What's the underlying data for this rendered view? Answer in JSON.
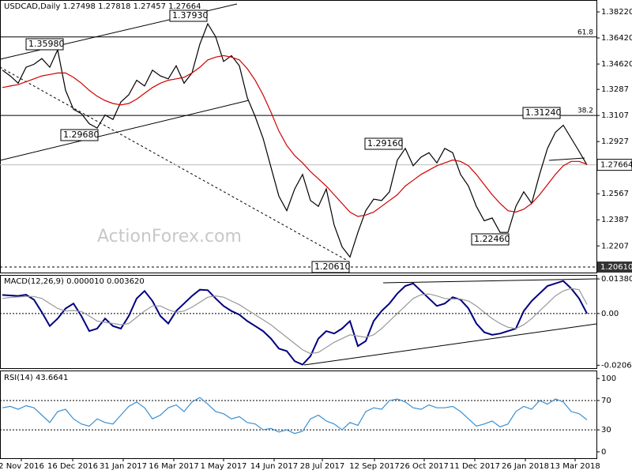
{
  "watermark": "ActionForex.com",
  "chart_data": [
    {
      "type": "line",
      "title": "USDCAD,Daily 1.27498 1.27818 1.27457 1.27664",
      "xlim": [
        -0.3,
        75.2
      ],
      "ylim": [
        1.2023,
        1.3904
      ],
      "grid": false,
      "yticks": [
        {
          "value": 1.3822,
          "label": "1.38220"
        },
        {
          "value": 1.3642,
          "label": "1.36420"
        },
        {
          "value": 1.3462,
          "label": "1.34620"
        },
        1.3287,
        1.3107,
        1.2927,
        1.2567,
        1.2387,
        1.2207
      ],
      "series": [
        {
          "color": "#000000",
          "values": [
            1.342,
            1.338,
            1.333,
            1.344,
            1.346,
            1.35,
            1.344,
            1.356,
            1.328,
            1.315,
            1.312,
            1.305,
            1.302,
            1.311,
            1.308,
            1.32,
            1.325,
            1.335,
            1.331,
            1.342,
            1.338,
            1.336,
            1.345,
            1.333,
            1.34,
            1.36,
            1.374,
            1.365,
            1.348,
            1.352,
            1.345,
            1.323,
            1.31,
            1.295,
            1.275,
            1.255,
            1.245,
            1.26,
            1.27,
            1.252,
            1.248,
            1.26,
            1.235,
            1.22,
            1.213,
            1.23,
            1.245,
            1.253,
            1.252,
            1.258,
            1.28,
            1.288,
            1.276,
            1.282,
            1.285,
            1.278,
            1.288,
            1.285,
            1.27,
            1.262,
            1.248,
            1.238,
            1.24,
            1.23,
            1.23,
            1.248,
            1.258,
            1.25,
            1.27,
            1.288,
            1.299,
            1.304,
            1.295,
            1.286,
            1.27664
          ]
        },
        {
          "color": "#d00000",
          "values": [
            1.33,
            1.331,
            1.332,
            1.334,
            1.336,
            1.338,
            1.339,
            1.34,
            1.34,
            1.337,
            1.333,
            1.328,
            1.324,
            1.321,
            1.319,
            1.318,
            1.319,
            1.322,
            1.326,
            1.33,
            1.333,
            1.335,
            1.336,
            1.337,
            1.34,
            1.344,
            1.349,
            1.351,
            1.352,
            1.351,
            1.349,
            1.343,
            1.335,
            1.325,
            1.313,
            1.3,
            1.29,
            1.283,
            1.278,
            1.272,
            1.267,
            1.262,
            1.256,
            1.25,
            1.244,
            1.241,
            1.242,
            1.244,
            1.248,
            1.252,
            1.256,
            1.262,
            1.266,
            1.27,
            1.273,
            1.276,
            1.278,
            1.28,
            1.279,
            1.276,
            1.27,
            1.263,
            1.256,
            1.25,
            1.245,
            1.244,
            1.246,
            1.25,
            1.256,
            1.263,
            1.27,
            1.276,
            1.279,
            1.279,
            1.277
          ]
        }
      ],
      "levels": [
        {
          "value": 1.3649,
          "label": "61.8"
        },
        {
          "value": 1.3107,
          "label": "38.2"
        }
      ],
      "current": 1.27664,
      "support": {
        "value": 1.2061,
        "label": "1.20610"
      },
      "annotations": [
        {
          "text": "1.37930",
          "index": 26,
          "value": 1.3793
        },
        {
          "text": "1.35980",
          "index": 7,
          "value": 1.3598
        },
        {
          "text": "1.29680",
          "index": 12,
          "value": 1.2968
        },
        {
          "text": "1.29160",
          "index": 51,
          "value": 1.2916
        },
        {
          "text": "1.31240",
          "index": 71,
          "value": 1.3124
        },
        {
          "text": "1.22460",
          "index": 64,
          "value": 1.2246
        },
        {
          "text": "1.20610",
          "index": 44,
          "value": 1.2061
        }
      ]
    },
    {
      "type": "line",
      "title": "MACD(12,26,9) 0.000010 0.003620",
      "xlim": [
        -0.3,
        75.2
      ],
      "ylim": [
        -0.0218,
        0.0154
      ],
      "grid": true,
      "yticks": [
        0.013802,
        {
          "value": 0,
          "label": "0.00"
        },
        -0.020648
      ],
      "series": [
        {
          "color": "#000080",
          "values": [
            0.0074,
            0.0072,
            0.007,
            0.0075,
            0.0055,
            0.0005,
            -0.005,
            -0.002,
            0.002,
            0.004,
            -0.001,
            -0.007,
            -0.006,
            -0.002,
            -0.005,
            -0.006,
            -0.001,
            0.006,
            0.009,
            0.005,
            -0.001,
            -0.004,
            0.001,
            0.004,
            0.007,
            0.0095,
            0.0093,
            0.006,
            0.003,
            0.001,
            -0.0005,
            -0.003,
            -0.005,
            -0.007,
            -0.01,
            -0.014,
            -0.015,
            -0.019,
            -0.0204,
            -0.017,
            -0.01,
            -0.007,
            -0.008,
            -0.006,
            -0.003,
            -0.013,
            -0.011,
            -0.003,
            0.001,
            0.004,
            0.008,
            0.011,
            0.012,
            0.009,
            0.006,
            0.003,
            0.004,
            0.0065,
            0.0055,
            0.002,
            -0.004,
            -0.0075,
            -0.0085,
            -0.008,
            -0.007,
            -0.006,
            0.001,
            0.005,
            0.008,
            0.011,
            0.012,
            0.013,
            0.01,
            0.006,
            1e-05
          ]
        },
        {
          "color": "#999999",
          "values": [
            0.006,
            0.0064,
            0.0066,
            0.0068,
            0.0068,
            0.006,
            0.004,
            0.002,
            0.001,
            0.0012,
            0.0008,
            -0.001,
            -0.003,
            -0.0035,
            -0.004,
            -0.0045,
            -0.004,
            -0.0015,
            0.001,
            0.003,
            0.003,
            0.0015,
            0.0005,
            0.001,
            0.0025,
            0.0045,
            0.0065,
            0.007,
            0.0065,
            0.005,
            0.0035,
            0.0015,
            -0.0005,
            -0.0025,
            -0.0045,
            -0.007,
            -0.0095,
            -0.012,
            -0.0145,
            -0.016,
            -0.0155,
            -0.0135,
            -0.0115,
            -0.01,
            -0.0085,
            -0.009,
            -0.0095,
            -0.0085,
            -0.006,
            -0.003,
            0,
            0.003,
            0.006,
            0.0075,
            0.0078,
            0.007,
            0.006,
            0.0058,
            0.0058,
            0.005,
            0.003,
            0.0005,
            -0.002,
            -0.004,
            -0.0055,
            -0.006,
            -0.0045,
            -0.002,
            0.001,
            0.004,
            0.007,
            0.009,
            0.01,
            0.0095,
            0.00362
          ]
        }
      ]
    },
    {
      "type": "line",
      "title": "RSI(14) 43.6641",
      "xlim": [
        -0.3,
        75.2
      ],
      "ylim": [
        -8.7,
        110.9
      ],
      "grid": true,
      "yticks": [
        100,
        70,
        30,
        0
      ],
      "xticks": [
        {
          "value": 2.4,
          "label": "2 Nov 2016"
        },
        {
          "value": 8.9,
          "label": "16 Dec 2016"
        },
        {
          "value": 15.3,
          "label": "31 Jan 2017"
        },
        {
          "value": 21.7,
          "label": "16 Mar 2017"
        },
        {
          "value": 28,
          "label": "1 May 2017"
        },
        {
          "value": 34.4,
          "label": "14 Jun 2017"
        },
        {
          "value": 40.5,
          "label": "28 Jul 2017"
        },
        {
          "value": 47.1,
          "label": "12 Sep 2017"
        },
        {
          "value": 53.4,
          "label": "26 Oct 2017"
        },
        {
          "value": 59.8,
          "label": "11 Dec 2017"
        },
        {
          "value": 66.2,
          "label": "26 Jan 2018"
        },
        {
          "value": 72.5,
          "label": "13 Mar 2018"
        }
      ],
      "series": [
        {
          "color": "#3a8fd0",
          "values": [
            60,
            62,
            58,
            63,
            60,
            50,
            40,
            55,
            58,
            45,
            38,
            35,
            45,
            40,
            38,
            50,
            62,
            68,
            60,
            45,
            50,
            60,
            64,
            55,
            68,
            74,
            65,
            55,
            52,
            45,
            48,
            40,
            38,
            30,
            32,
            27,
            30,
            25,
            28,
            45,
            50,
            42,
            38,
            30,
            40,
            36,
            55,
            60,
            58,
            70,
            72,
            68,
            60,
            58,
            64,
            60,
            60,
            62,
            55,
            45,
            35,
            38,
            42,
            34,
            38,
            55,
            62,
            58,
            70,
            65,
            72,
            68,
            55,
            52,
            43.6641
          ]
        }
      ]
    }
  ]
}
